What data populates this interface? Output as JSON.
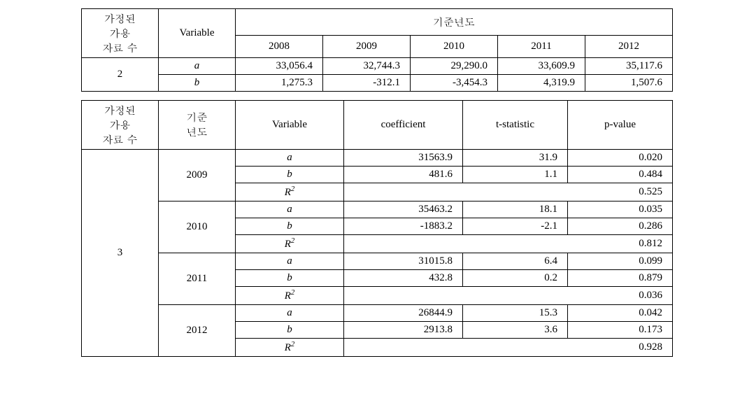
{
  "table1": {
    "h_data_count": "가정된\n가용\n자료 수",
    "h_variable": "Variable",
    "h_baseyear": "기준년도",
    "years": [
      "2008",
      "2009",
      "2010",
      "2011",
      "2012"
    ],
    "row_count": "2",
    "var_a": "a",
    "var_b": "b",
    "a_vals": [
      "33,056.4",
      "32,744.3",
      "29,290.0",
      "33,609.9",
      "35,117.6"
    ],
    "b_vals": [
      "1,275.3",
      "-312.1",
      "-3,454.3",
      "4,319.9",
      "1,507.6"
    ]
  },
  "table2": {
    "h_data_count": "가정된\n가용\n자료 수",
    "h_baseyear": "기준\n년도",
    "h_variable": "Variable",
    "h_coef": "coefficient",
    "h_tstat": "t-statistic",
    "h_pval": "p-value",
    "row_count": "3",
    "groups": [
      {
        "year": "2009",
        "a": {
          "coef": "31563.9",
          "t": "31.9",
          "p": "0.020"
        },
        "b": {
          "coef": "481.6",
          "t": "1.1",
          "p": "0.484"
        },
        "r2": "0.525"
      },
      {
        "year": "2010",
        "a": {
          "coef": "35463.2",
          "t": "18.1",
          "p": "0.035"
        },
        "b": {
          "coef": "-1883.2",
          "t": "-2.1",
          "p": "0.286"
        },
        "r2": "0.812"
      },
      {
        "year": "2011",
        "a": {
          "coef": "31015.8",
          "t": "6.4",
          "p": "0.099"
        },
        "b": {
          "coef": "432.8",
          "t": "0.2",
          "p": "0.879"
        },
        "r2": "0.036"
      },
      {
        "year": "2012",
        "a": {
          "coef": "26844.9",
          "t": "15.3",
          "p": "0.042"
        },
        "b": {
          "coef": "2913.8",
          "t": "3.6",
          "p": "0.173"
        },
        "r2": "0.928"
      }
    ],
    "var_a": "a",
    "var_b": "b",
    "var_r2": "R",
    "var_r2_sup": "2"
  },
  "layout": {
    "t1_col_widths": [
      110,
      110,
      125,
      125,
      125,
      125,
      125
    ],
    "t2_col_widths": [
      110,
      110,
      155,
      170,
      150,
      150
    ]
  }
}
